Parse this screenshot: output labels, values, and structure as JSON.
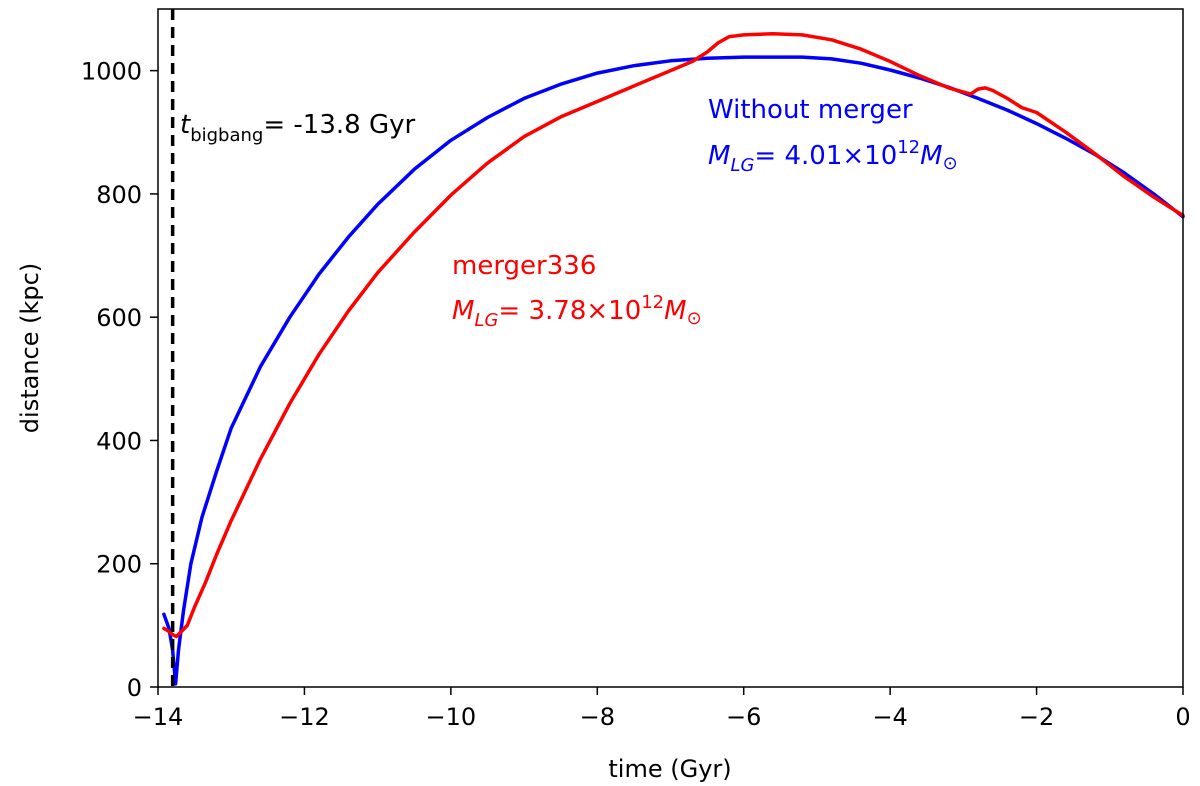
{
  "chart_data": {
    "type": "line",
    "xlabel": "time (Gyr)",
    "ylabel": "distance (kpc)",
    "xlim": [
      -14,
      0
    ],
    "ylim": [
      0,
      1100
    ],
    "xticks": [
      -14,
      -12,
      -10,
      -8,
      -6,
      -4,
      -2,
      0
    ],
    "xtick_labels": [
      "−14",
      "−12",
      "−10",
      "−8",
      "−6",
      "−4",
      "−2",
      "0"
    ],
    "yticks": [
      0,
      200,
      400,
      600,
      800,
      1000
    ],
    "ytick_labels": [
      "0",
      "200",
      "400",
      "600",
      "800",
      "1000"
    ],
    "grid": false,
    "series": [
      {
        "name": "Without merger",
        "color": "#0000ff",
        "x": [
          -13.92,
          -13.85,
          -13.8,
          -13.76,
          -13.72,
          -13.65,
          -13.55,
          -13.4,
          -13.2,
          -13.0,
          -12.6,
          -12.2,
          -11.8,
          -11.4,
          -11.0,
          -10.5,
          -10.0,
          -9.5,
          -9.0,
          -8.5,
          -8.0,
          -7.5,
          -7.0,
          -6.5,
          -6.0,
          -5.6,
          -5.2,
          -4.8,
          -4.4,
          -4.0,
          -3.6,
          -3.2,
          -2.8,
          -2.4,
          -2.0,
          -1.6,
          -1.2,
          -0.8,
          -0.4,
          0.0
        ],
        "y": [
          118,
          95,
          60,
          5,
          60,
          125,
          200,
          275,
          350,
          420,
          520,
          600,
          670,
          730,
          783,
          840,
          887,
          924,
          955,
          978,
          996,
          1008,
          1016,
          1020,
          1022,
          1022,
          1022,
          1019,
          1012,
          1001,
          988,
          973,
          955,
          936,
          914,
          890,
          864,
          834,
          800,
          763
        ]
      },
      {
        "name": "merger336",
        "color": "#ff0000",
        "x": [
          -13.92,
          -13.85,
          -13.8,
          -13.75,
          -13.68,
          -13.6,
          -13.5,
          -13.35,
          -13.2,
          -13.0,
          -12.6,
          -12.2,
          -11.8,
          -11.4,
          -11.0,
          -10.5,
          -10.0,
          -9.5,
          -9.0,
          -8.5,
          -8.0,
          -7.5,
          -7.0,
          -6.7,
          -6.5,
          -6.35,
          -6.2,
          -6.0,
          -5.6,
          -5.2,
          -4.8,
          -4.4,
          -4.0,
          -3.6,
          -3.2,
          -2.9,
          -2.8,
          -2.7,
          -2.6,
          -2.4,
          -2.2,
          -2.0,
          -1.6,
          -1.2,
          -0.8,
          -0.4,
          0.0
        ],
        "y": [
          95,
          90,
          85,
          82,
          90,
          100,
          130,
          170,
          215,
          270,
          370,
          460,
          540,
          610,
          672,
          738,
          798,
          850,
          893,
          925,
          950,
          975,
          1000,
          1015,
          1030,
          1045,
          1055,
          1058,
          1060,
          1058,
          1050,
          1035,
          1015,
          992,
          972,
          962,
          970,
          972,
          968,
          955,
          940,
          932,
          900,
          865,
          828,
          795,
          765
        ]
      }
    ],
    "annotations": [
      {
        "type": "vline",
        "x": -13.8,
        "style": "dashed",
        "color": "#000000",
        "label_base": "t",
        "label_sub": "bigbang",
        "label_rest": "= -13.8 Gyr"
      },
      {
        "series": "Without merger",
        "color": "#0000ff",
        "line1": "Without merger",
        "mass_prefix": "M",
        "mass_sub": "LG",
        "mass_value": "= 4.01×10",
        "mass_exp": "12",
        "mass_unit": "M",
        "mass_unit_sub": "⊙"
      },
      {
        "series": "merger336",
        "color": "#ff0000",
        "line1": "merger336",
        "mass_prefix": "M",
        "mass_sub": "LG",
        "mass_value": "= 3.78×10",
        "mass_exp": "12",
        "mass_unit": "M",
        "mass_unit_sub": "⊙"
      }
    ]
  }
}
